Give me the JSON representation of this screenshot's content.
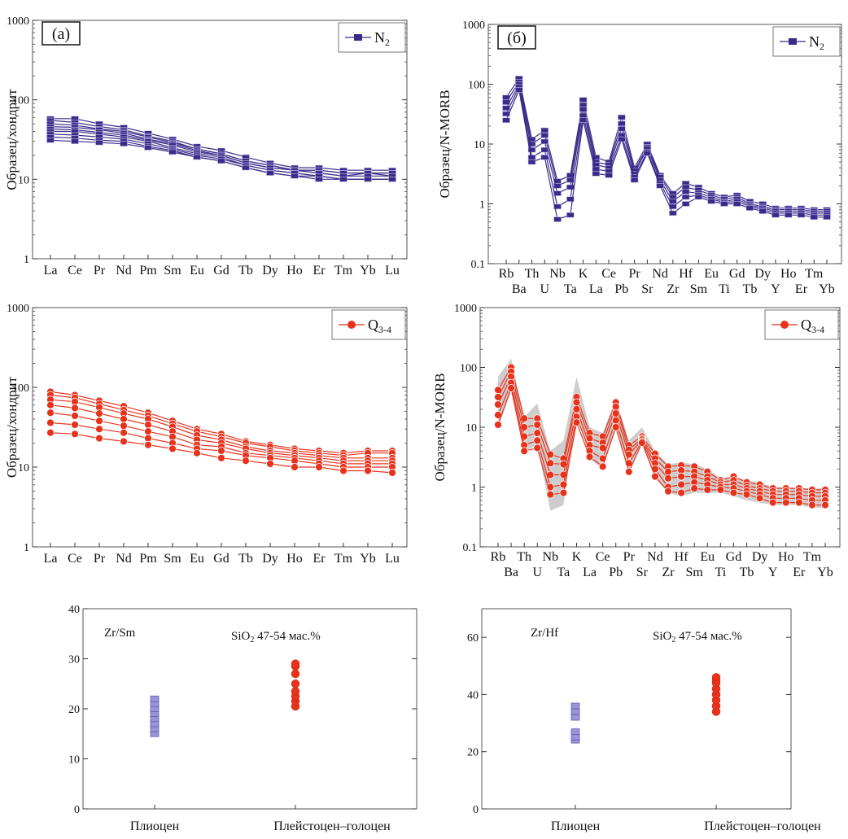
{
  "colors": {
    "n2": "#3b2a88",
    "n2_fill": "#9a93d8",
    "q34": "#e8321b",
    "band": "#c8c8c8",
    "frame": "#555555"
  },
  "chart_data": [
    {
      "id": "chart-a-n2",
      "type": "line",
      "panel_label": "(a)",
      "ylabel": "Образец/хондрит",
      "yscale": "log",
      "ylim": [
        1,
        1000
      ],
      "yticks": [
        "1",
        "10",
        "100",
        "1000"
      ],
      "categories": [
        "La",
        "Ce",
        "Pr",
        "Nd",
        "Pm",
        "Sm",
        "Eu",
        "Gd",
        "Tb",
        "Dy",
        "Ho",
        "Er",
        "Tm",
        "Yb",
        "Lu"
      ],
      "legend": {
        "label": "N",
        "sub": "2",
        "position": "top-right",
        "marker": "square"
      },
      "series": [
        {
          "values": [
            58,
            58,
            50,
            45,
            38,
            32,
            26,
            23,
            19,
            16,
            14,
            14,
            13,
            13,
            13
          ]
        },
        {
          "values": [
            55,
            52,
            46,
            42,
            35,
            30,
            24,
            21,
            17,
            15,
            13,
            13,
            12,
            12,
            12
          ]
        },
        {
          "values": [
            50,
            48,
            43,
            40,
            34,
            29,
            24,
            21,
            17,
            15,
            13,
            13,
            12,
            12,
            12
          ]
        },
        {
          "values": [
            46,
            45,
            42,
            38,
            32,
            28,
            23,
            20,
            16,
            14,
            13,
            12,
            11,
            12,
            11
          ]
        },
        {
          "values": [
            43,
            42,
            39,
            36,
            31,
            27,
            22,
            20,
            16,
            14,
            13,
            12,
            11,
            11,
            11
          ]
        },
        {
          "values": [
            40,
            40,
            37,
            34,
            30,
            25,
            21,
            19,
            15,
            13,
            12,
            11,
            10,
            10,
            10
          ]
        },
        {
          "values": [
            37,
            36,
            34,
            32,
            28,
            24,
            20,
            18,
            15,
            13,
            12,
            11,
            10,
            10,
            10
          ]
        },
        {
          "values": [
            34,
            33,
            31,
            30,
            26,
            23,
            19,
            17,
            14,
            12,
            11,
            11,
            10,
            10,
            10
          ]
        },
        {
          "values": [
            31,
            30,
            29,
            28,
            25,
            22,
            19,
            17,
            14,
            12,
            11,
            10,
            10,
            10,
            10
          ]
        }
      ]
    },
    {
      "id": "chart-b-n2",
      "type": "line",
      "panel_label": "(б)",
      "ylabel": "Образец/N-MORB",
      "yscale": "log",
      "ylim": [
        0.1,
        1000
      ],
      "yticks": [
        "0.1",
        "1",
        "10",
        "100",
        "1000"
      ],
      "categories": [
        "Rb",
        "Ba",
        "Th",
        "U",
        "Nb",
        "Ta",
        "K",
        "La",
        "Ce",
        "Pb",
        "Pr",
        "Sr",
        "Nd",
        "Zr",
        "Hf",
        "Sm",
        "Eu",
        "Ti",
        "Gd",
        "Tb",
        "Dy",
        "Y",
        "Ho",
        "Er",
        "Tm",
        "Yb"
      ],
      "legend": {
        "label": "N",
        "sub": "2",
        "position": "top-right",
        "marker": "square"
      },
      "series": [
        {
          "values": [
            60,
            125,
            12,
            17,
            2.4,
            3.0,
            55,
            6,
            5,
            28,
            4,
            10,
            3.0,
            1.5,
            2.2,
            1.9,
            1.5,
            1.3,
            1.4,
            1.1,
            1.0,
            0.85,
            0.85,
            0.85,
            0.8,
            0.8
          ]
        },
        {
          "values": [
            50,
            110,
            10,
            14,
            2.0,
            2.5,
            45,
            5,
            4.5,
            22,
            3.6,
            9,
            2.8,
            1.3,
            1.9,
            1.7,
            1.4,
            1.2,
            1.3,
            1.0,
            0.9,
            0.8,
            0.8,
            0.8,
            0.75,
            0.75
          ]
        },
        {
          "values": [
            40,
            100,
            8,
            11,
            1.5,
            1.9,
            38,
            4.5,
            4,
            18,
            3.2,
            8.5,
            2.5,
            1.1,
            1.6,
            1.5,
            1.3,
            1.1,
            1.2,
            0.95,
            0.85,
            0.75,
            0.75,
            0.75,
            0.7,
            0.7
          ]
        },
        {
          "values": [
            32,
            90,
            6,
            8,
            0.9,
            1.2,
            30,
            3.8,
            3.5,
            14,
            2.8,
            7.5,
            2.2,
            0.9,
            1.3,
            1.4,
            1.2,
            1.05,
            1.1,
            0.9,
            0.8,
            0.7,
            0.7,
            0.7,
            0.65,
            0.65
          ]
        },
        {
          "values": [
            25,
            80,
            5,
            6,
            0.55,
            0.65,
            25,
            3.2,
            3,
            12,
            2.5,
            7,
            2.0,
            0.7,
            1.0,
            1.3,
            1.1,
            1.0,
            1.0,
            0.85,
            0.75,
            0.65,
            0.65,
            0.65,
            0.6,
            0.6
          ]
        }
      ]
    },
    {
      "id": "chart-c-q34",
      "type": "line",
      "ylabel": "Образец/хондрит",
      "yscale": "log",
      "ylim": [
        1,
        1000
      ],
      "yticks": [
        "1",
        "10",
        "100",
        "1000"
      ],
      "categories": [
        "La",
        "Ce",
        "Pr",
        "Nd",
        "Pm",
        "Sm",
        "Eu",
        "Gd",
        "Tb",
        "Dy",
        "Ho",
        "Er",
        "Tm",
        "Yb",
        "Lu"
      ],
      "legend": {
        "label": "Q",
        "sub": "3-4",
        "position": "top-right",
        "marker": "circle"
      },
      "series": [
        {
          "values": [
            88,
            80,
            68,
            58,
            48,
            38,
            30,
            26,
            21,
            19,
            17,
            16,
            15,
            16,
            16
          ]
        },
        {
          "values": [
            80,
            74,
            62,
            52,
            44,
            35,
            28,
            24,
            20,
            18,
            16,
            15,
            14,
            15,
            15
          ]
        },
        {
          "values": [
            70,
            66,
            56,
            47,
            40,
            32,
            25,
            22,
            18,
            16,
            15,
            14,
            13,
            13,
            13
          ]
        },
        {
          "values": [
            60,
            55,
            47,
            40,
            34,
            28,
            22,
            20,
            17,
            15,
            14,
            13,
            12,
            12,
            12
          ]
        },
        {
          "values": [
            48,
            44,
            38,
            33,
            28,
            24,
            19,
            18,
            15,
            14,
            13,
            12,
            11,
            11,
            11
          ]
        },
        {
          "values": [
            36,
            34,
            30,
            27,
            23,
            20,
            17,
            16,
            14,
            13,
            12,
            11,
            10,
            10,
            10
          ]
        },
        {
          "values": [
            27,
            26,
            23,
            21,
            19,
            17,
            15,
            13,
            12,
            11,
            10,
            10,
            9,
            9,
            8.5
          ]
        }
      ]
    },
    {
      "id": "chart-d-q34",
      "type": "line",
      "ylabel": "Образец/N-MORB",
      "yscale": "log",
      "ylim": [
        0.1,
        1000
      ],
      "yticks": [
        "0.1",
        "1",
        "10",
        "100",
        "1000"
      ],
      "categories": [
        "Rb",
        "Ba",
        "Th",
        "U",
        "Nb",
        "Ta",
        "K",
        "La",
        "Ce",
        "Pb",
        "Pr",
        "Sr",
        "Nd",
        "Zr",
        "Hf",
        "Sm",
        "Eu",
        "Ti",
        "Gd",
        "Tb",
        "Dy",
        "Y",
        "Ho",
        "Er",
        "Tm",
        "Yb"
      ],
      "legend": {
        "label": "Q",
        "sub": "3-4",
        "position": "top-right",
        "marker": "circle"
      },
      "band_upper": [
        70,
        140,
        15,
        25,
        4,
        6,
        70,
        10,
        8,
        30,
        6,
        10,
        4,
        2.4,
        2.6,
        2.4,
        2,
        1.4,
        1.5,
        1.3,
        1.2,
        1.0,
        1.0,
        0.95,
        0.95,
        0.95
      ],
      "band_lower": [
        10,
        40,
        4,
        5,
        0.4,
        0.5,
        18,
        3,
        2,
        10,
        1.7,
        6,
        1.4,
        0.8,
        0.7,
        0.8,
        0.8,
        0.8,
        0.7,
        0.6,
        0.55,
        0.5,
        0.5,
        0.5,
        0.45,
        0.45
      ],
      "series": [
        {
          "values": [
            42,
            100,
            14,
            14,
            3.5,
            3.0,
            32,
            8,
            7,
            26,
            5,
            7,
            3.6,
            2.2,
            2.3,
            2.2,
            1.8,
            1.3,
            1.5,
            1.2,
            1.1,
            0.95,
            0.95,
            0.95,
            0.9,
            0.9
          ]
        },
        {
          "values": [
            32,
            85,
            10,
            11,
            2.5,
            2.4,
            26,
            6.5,
            5.5,
            22,
            4.2,
            6.5,
            3.0,
            1.8,
            1.9,
            1.8,
            1.5,
            1.2,
            1.3,
            1.05,
            0.95,
            0.85,
            0.85,
            0.85,
            0.8,
            0.8
          ]
        },
        {
          "values": [
            24,
            70,
            7,
            8,
            1.6,
            1.6,
            20,
            5,
            4.5,
            17,
            3.5,
            6.2,
            2.5,
            1.4,
            1.5,
            1.5,
            1.3,
            1.1,
            1.1,
            0.95,
            0.85,
            0.75,
            0.75,
            0.75,
            0.7,
            0.7
          ]
        },
        {
          "values": [
            16,
            55,
            5,
            6,
            1.0,
            1.1,
            15,
            4,
            3,
            13,
            2.5,
            5.8,
            2.0,
            1.0,
            1.1,
            1.2,
            1.1,
            1.0,
            0.95,
            0.85,
            0.75,
            0.65,
            0.65,
            0.65,
            0.6,
            0.6
          ]
        },
        {
          "values": [
            11,
            45,
            4,
            4.5,
            0.75,
            0.8,
            12,
            3.2,
            2.2,
            10,
            1.8,
            5.5,
            1.5,
            0.85,
            0.8,
            0.95,
            0.9,
            0.9,
            0.8,
            0.75,
            0.65,
            0.55,
            0.55,
            0.55,
            0.5,
            0.5
          ]
        }
      ]
    },
    {
      "id": "chart-e-zrsm",
      "type": "scatter",
      "ratio_label": "Zr/Sm",
      "sio2_label": "SiO",
      "sio2_sub": "2",
      "sio2_rest": " 47-54  мас.%",
      "ylim": [
        0,
        40
      ],
      "yticks": [
        0,
        10,
        20,
        30,
        40
      ],
      "categories": [
        "Плиоцен",
        "Плейстоцен–голоцен"
      ],
      "groups": [
        {
          "category": "Плиоцен",
          "marker": "square",
          "values": [
            15,
            16,
            17,
            18,
            19,
            20,
            21,
            22
          ]
        },
        {
          "category": "Плейстоцен–голоцен",
          "marker": "circle",
          "values": [
            20.5,
            21.5,
            22.5,
            23.5,
            25,
            27,
            28.5,
            29
          ]
        }
      ]
    },
    {
      "id": "chart-f-zrhf",
      "type": "scatter",
      "ratio_label": "Zr/Hf",
      "sio2_label": "SiO",
      "sio2_sub": "2",
      "sio2_rest": " 47-54  мас.%",
      "ylim": [
        0,
        70
      ],
      "yticks": [
        0,
        20,
        40,
        60
      ],
      "categories": [
        "Плиоцен",
        "Плейстоцен–голоцен"
      ],
      "groups": [
        {
          "category": "Плиоцен",
          "marker": "square",
          "values": [
            24,
            25,
            27,
            32,
            34,
            36
          ]
        },
        {
          "category": "Плейстоцен–голоцен",
          "marker": "circle",
          "values": [
            34,
            36,
            38,
            40,
            42,
            44,
            45,
            46
          ]
        }
      ]
    }
  ]
}
